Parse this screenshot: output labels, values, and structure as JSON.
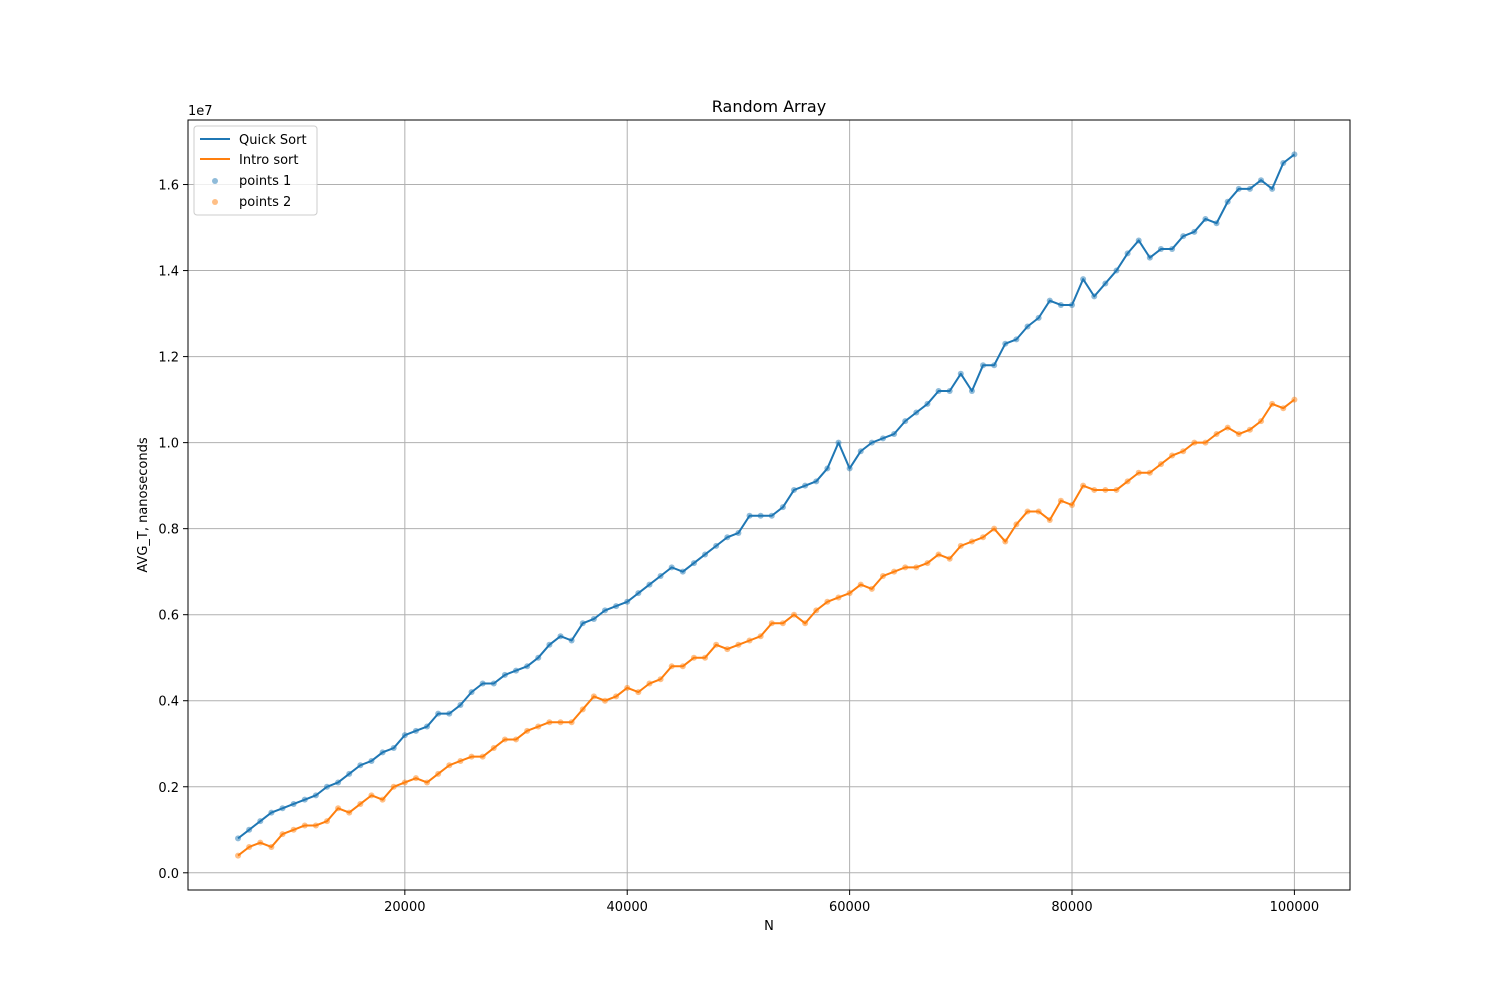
{
  "chart_data": {
    "type": "line",
    "title": "Random Array",
    "xlabel": "N",
    "ylabel": "AVG_T, nanoseconds",
    "y_offset_label": "1e7",
    "xlim": [
      500,
      105000
    ],
    "ylim": [
      -400000,
      17500000
    ],
    "x_ticks": [
      20000,
      40000,
      60000,
      80000,
      100000
    ],
    "x_tick_labels": [
      "20000",
      "40000",
      "60000",
      "80000",
      "100000"
    ],
    "y_ticks": [
      0,
      2000000,
      4000000,
      6000000,
      8000000,
      10000000,
      12000000,
      14000000,
      16000000
    ],
    "y_tick_labels": [
      "0.0",
      "0.2",
      "0.4",
      "0.6",
      "0.8",
      "1.0",
      "1.2",
      "1.4",
      "1.6"
    ],
    "grid": true,
    "legend_position": "top-left",
    "x": [
      5000,
      6000,
      7000,
      8000,
      9000,
      10000,
      11000,
      12000,
      13000,
      14000,
      15000,
      16000,
      17000,
      18000,
      19000,
      20000,
      21000,
      22000,
      23000,
      24000,
      25000,
      26000,
      27000,
      28000,
      29000,
      30000,
      31000,
      32000,
      33000,
      34000,
      35000,
      36000,
      37000,
      38000,
      39000,
      40000,
      41000,
      42000,
      43000,
      44000,
      45000,
      46000,
      47000,
      48000,
      49000,
      50000,
      51000,
      52000,
      53000,
      54000,
      55000,
      56000,
      57000,
      58000,
      59000,
      60000,
      61000,
      62000,
      63000,
      64000,
      65000,
      66000,
      67000,
      68000,
      69000,
      70000,
      71000,
      72000,
      73000,
      74000,
      75000,
      76000,
      77000,
      78000,
      79000,
      80000,
      81000,
      82000,
      83000,
      84000,
      85000,
      86000,
      87000,
      88000,
      89000,
      90000,
      91000,
      92000,
      93000,
      94000,
      95000,
      96000,
      97000,
      98000,
      99000,
      100000
    ],
    "series": [
      {
        "name": "Quick Sort",
        "points_name": "points 1",
        "color": "#1f77b4",
        "values": [
          800000,
          1000000,
          1200000,
          1400000,
          1500000,
          1600000,
          1700000,
          1800000,
          2000000,
          2100000,
          2300000,
          2500000,
          2600000,
          2800000,
          2900000,
          3200000,
          3300000,
          3400000,
          3700000,
          3700000,
          3900000,
          4200000,
          4400000,
          4400000,
          4600000,
          4700000,
          4800000,
          5000000,
          5300000,
          5500000,
          5400000,
          5800000,
          5900000,
          6100000,
          6200000,
          6300000,
          6500000,
          6700000,
          6900000,
          7100000,
          7000000,
          7200000,
          7400000,
          7600000,
          7800000,
          7900000,
          8300000,
          8300000,
          8300000,
          8500000,
          8900000,
          9000000,
          9100000,
          9400000,
          10000000,
          9400000,
          9800000,
          10000000,
          10100000,
          10200000,
          10500000,
          10700000,
          10900000,
          11200000,
          11200000,
          11600000,
          11200000,
          11800000,
          11800000,
          12300000,
          12400000,
          12700000,
          12900000,
          13300000,
          13200000,
          13200000,
          13800000,
          13400000,
          13700000,
          14000000,
          14400000,
          14700000,
          14300000,
          14500000,
          14500000,
          14800000,
          14900000,
          15200000,
          15100000,
          15600000,
          15900000,
          15900000,
          16100000,
          15900000,
          16500000,
          16700000
        ]
      },
      {
        "name": "Intro sort",
        "points_name": "points 2",
        "color": "#ff7f0e",
        "values": [
          400000,
          600000,
          700000,
          600000,
          900000,
          1000000,
          1100000,
          1100000,
          1200000,
          1500000,
          1400000,
          1600000,
          1800000,
          1700000,
          2000000,
          2100000,
          2200000,
          2100000,
          2300000,
          2500000,
          2600000,
          2700000,
          2700000,
          2900000,
          3100000,
          3100000,
          3300000,
          3400000,
          3500000,
          3500000,
          3500000,
          3800000,
          4100000,
          4000000,
          4100000,
          4300000,
          4200000,
          4400000,
          4500000,
          4800000,
          4800000,
          5000000,
          5000000,
          5300000,
          5200000,
          5300000,
          5400000,
          5500000,
          5800000,
          5800000,
          6000000,
          5800000,
          6100000,
          6300000,
          6400000,
          6500000,
          6700000,
          6600000,
          6900000,
          7000000,
          7100000,
          7100000,
          7200000,
          7400000,
          7300000,
          7600000,
          7700000,
          7800000,
          8000000,
          7700000,
          8100000,
          8400000,
          8400000,
          8200000,
          8650000,
          8550000,
          9000000,
          8900000,
          8900000,
          8900000,
          9100000,
          9300000,
          9300000,
          9500000,
          9700000,
          9800000,
          10000000,
          10000000,
          10200000,
          10350000,
          10200000,
          10300000,
          10500000,
          10900000,
          10800000,
          11000000
        ]
      }
    ]
  }
}
